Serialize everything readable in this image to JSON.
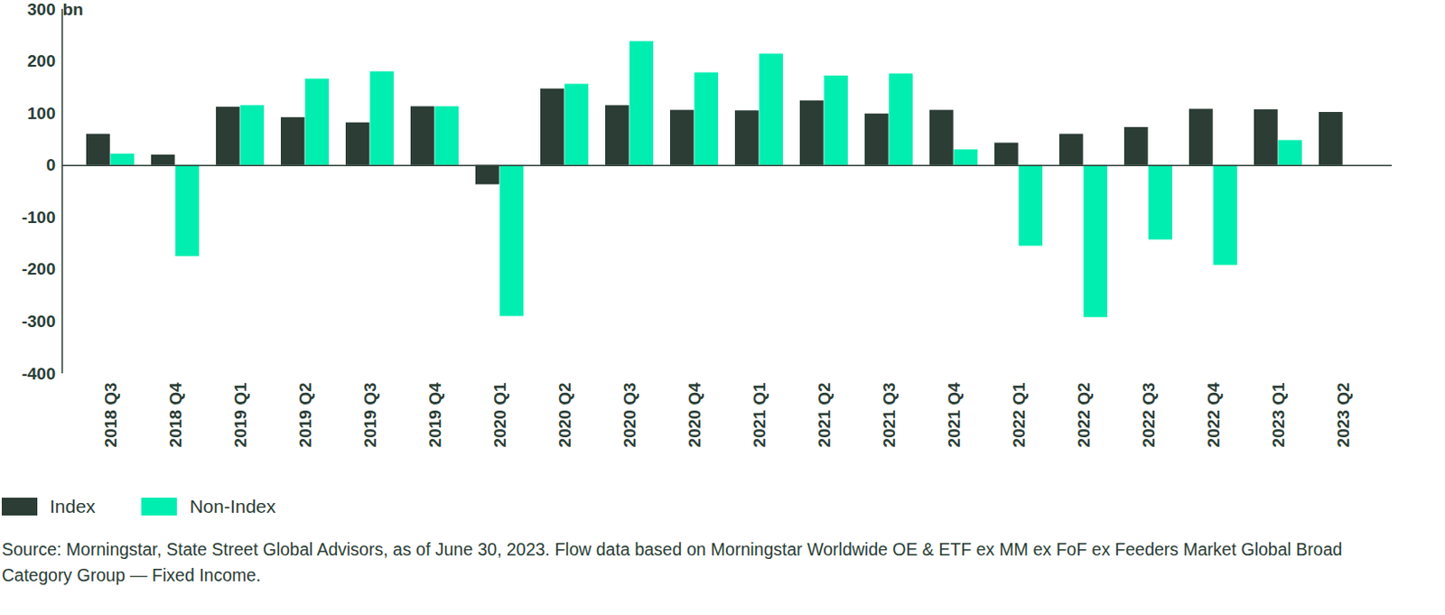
{
  "chart_data": {
    "type": "bar",
    "ylabel": "bn",
    "caption": "Source: Morningstar, State Street Global Advisors, as of June 30, 2023. Flow data based on Morningstar Worldwide OE & ETF ex MM ex FoF ex Feeders Market Global Broad Category Group — Fixed Income.",
    "categories": [
      "2018 Q3",
      "2018 Q4",
      "2019 Q1",
      "2019 Q2",
      "2019 Q3",
      "2019 Q4",
      "2020 Q1",
      "2020 Q2",
      "2020 Q3",
      "2020 Q4",
      "2021 Q1",
      "2021 Q2",
      "2021 Q3",
      "2021 Q4",
      "2022 Q1",
      "2022 Q2",
      "2022 Q3",
      "2022 Q4",
      "2023 Q1",
      "2023 Q2"
    ],
    "series": [
      {
        "name": "Index",
        "color": "#2b3d35",
        "values": [
          60,
          20,
          112,
          92,
          82,
          113,
          -37,
          147,
          115,
          106,
          105,
          124,
          99,
          106,
          43,
          60,
          73,
          108,
          107,
          102
        ]
      },
      {
        "name": "Non-Index",
        "color": "#00eeb0",
        "values": [
          22,
          -175,
          115,
          166,
          180,
          113,
          -290,
          156,
          238,
          178,
          214,
          172,
          176,
          30,
          -155,
          -292,
          -143,
          -192,
          48,
          null
        ]
      }
    ],
    "ylim": [
      -400,
      300
    ],
    "yticks": [
      -400,
      -300,
      -200,
      -100,
      0,
      100,
      200,
      300
    ],
    "grid": false,
    "legend": "bottom"
  }
}
